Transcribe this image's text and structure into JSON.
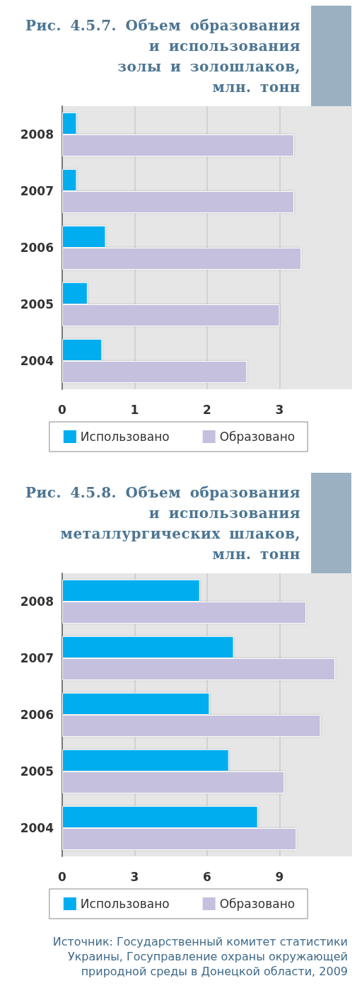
{
  "chart_data": [
    {
      "type": "bar",
      "title": "Рис. 4.5.7. Объем образования\nи использования\nзолы и золошлаков,\nмлн. тонн",
      "orientation": "horizontal",
      "categories": [
        "2008",
        "2007",
        "2006",
        "2005",
        "2004"
      ],
      "series": [
        {
          "name": "Использовано",
          "color": "#00adef",
          "values": [
            0.2,
            0.2,
            0.6,
            0.35,
            0.55
          ]
        },
        {
          "name": "Образовано",
          "color": "#c5c0dd",
          "values": [
            3.2,
            3.2,
            3.3,
            3.0,
            2.55
          ]
        }
      ],
      "xlim": [
        0,
        4
      ],
      "xticks": [
        0,
        1,
        2,
        3
      ],
      "grid": "x",
      "legend": "bottom"
    },
    {
      "type": "bar",
      "title": "Рис. 4.5.8. Объем образования\nи использования\nметаллургических шлаков,\nмлн. тонн",
      "orientation": "horizontal",
      "categories": [
        "2008",
        "2007",
        "2006",
        "2005",
        "2004"
      ],
      "series": [
        {
          "name": "Использовано",
          "color": "#00adef",
          "values": [
            5.7,
            7.1,
            6.1,
            6.9,
            8.1
          ]
        },
        {
          "name": "Образовано",
          "color": "#c5c0dd",
          "values": [
            10.1,
            11.3,
            10.7,
            9.2,
            9.7
          ]
        }
      ],
      "xlim": [
        0,
        12
      ],
      "xticks": [
        0,
        3,
        6,
        9
      ],
      "grid": "x",
      "legend": "bottom",
      "annotations": [
        "Источник: Государственный комитет статистики Украины, Госуправление охраны окружающей природной среды в Донецкой области, 2009"
      ]
    }
  ]
}
